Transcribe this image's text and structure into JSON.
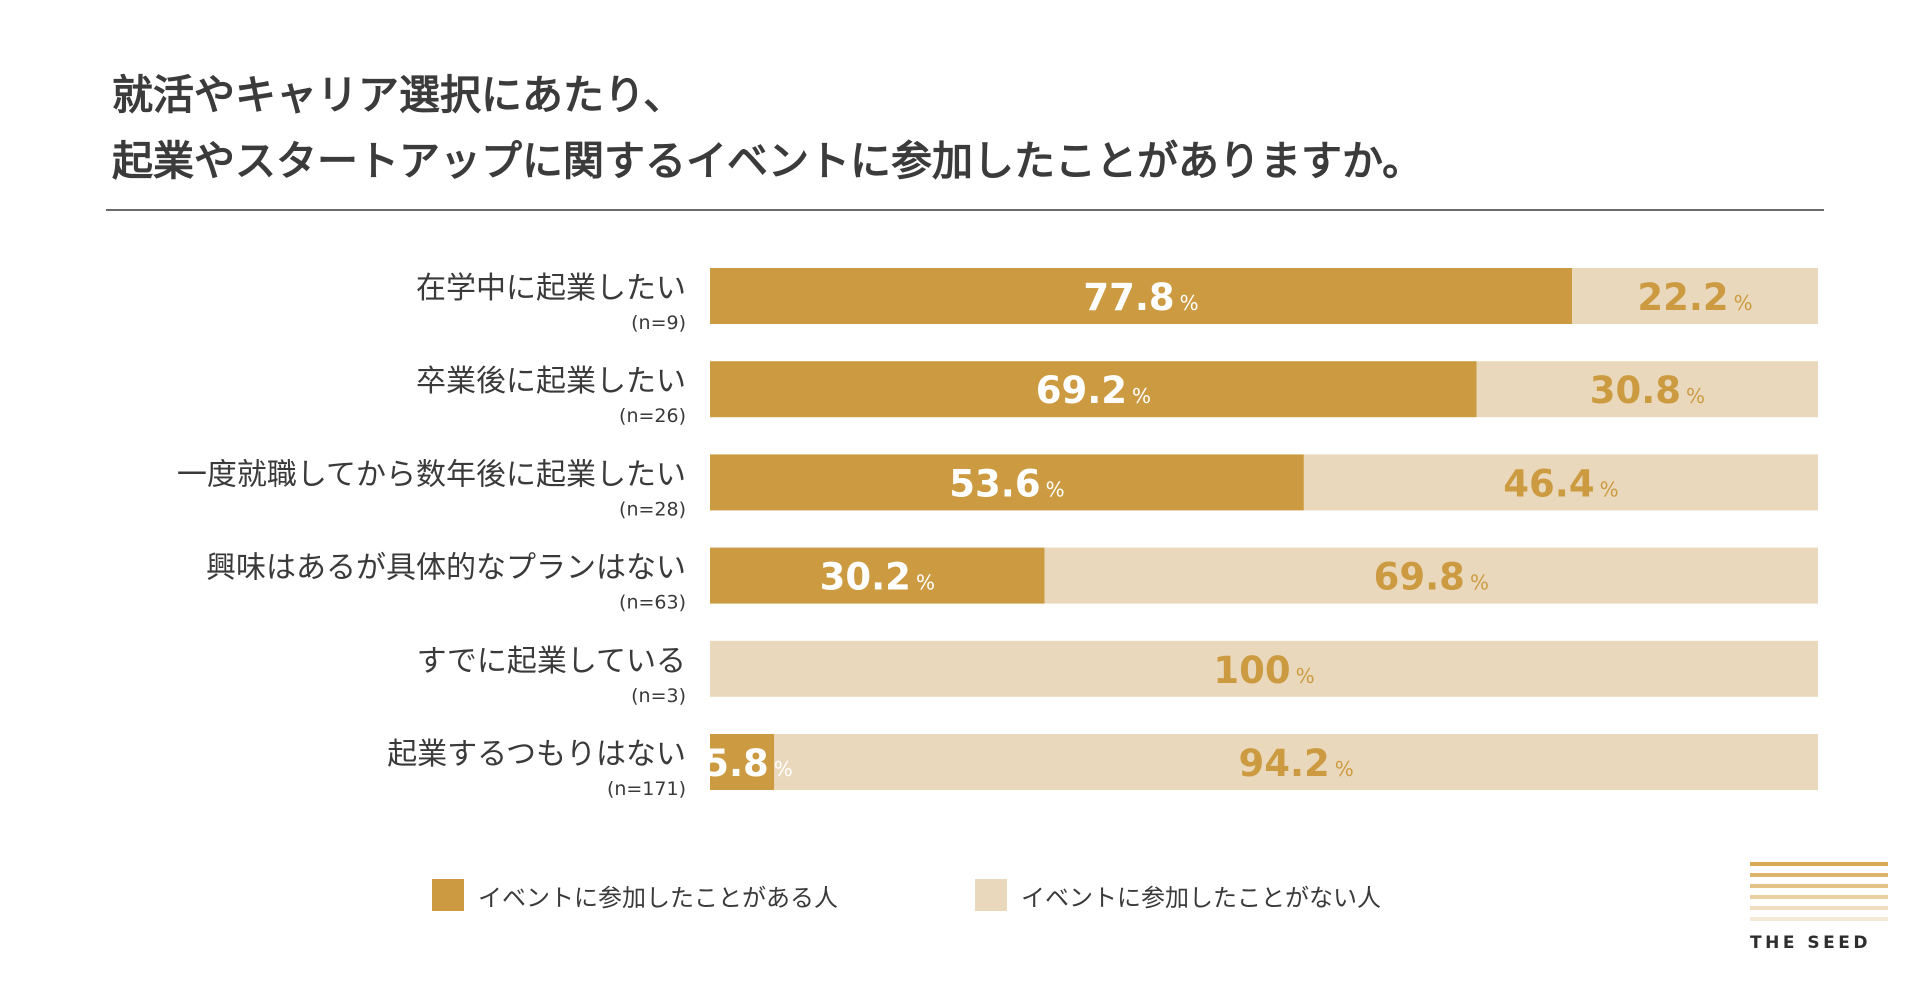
{
  "title": {
    "line1": "就活やキャリア選択にあたり、",
    "line2": "起業やスタートアップに関するイベントに参加したことがありますか。"
  },
  "colors": {
    "participated": "#CC9B41",
    "not_participated": "#EAD8BC",
    "text": "#3A3A3A"
  },
  "chart_data": {
    "type": "bar",
    "orientation": "horizontal-stacked-100",
    "unit": "%",
    "categories": [
      "在学中に起業したい",
      "卒業後に起業したい",
      "一度就職してから数年後に起業したい",
      "興味はあるが具体的なプランはない",
      "すでに起業している",
      "起業するつもりはない"
    ],
    "sample_sizes": [
      "(n=9)",
      "(n=26)",
      "(n=28)",
      "(n=63)",
      "(n=3)",
      "(n=171)"
    ],
    "series": [
      {
        "name": "イベントに参加したことがある人",
        "values": [
          77.8,
          69.2,
          53.6,
          30.2,
          0,
          5.8
        ]
      },
      {
        "name": "イベントに参加したことがない人",
        "values": [
          22.2,
          30.8,
          46.4,
          69.8,
          100,
          94.2
        ]
      }
    ],
    "value_labels": [
      [
        "77.8",
        "69.2",
        "53.6",
        "30.2",
        "",
        "5.8"
      ],
      [
        "22.2",
        "30.8",
        "46.4",
        "69.8",
        "100",
        "94.2"
      ]
    ],
    "xlim": [
      0,
      100
    ]
  },
  "legend": {
    "participated": "イベントに参加したことがある人",
    "not_participated": "イベントに参加したことがない人"
  },
  "brand": {
    "name": "THE SEED"
  }
}
